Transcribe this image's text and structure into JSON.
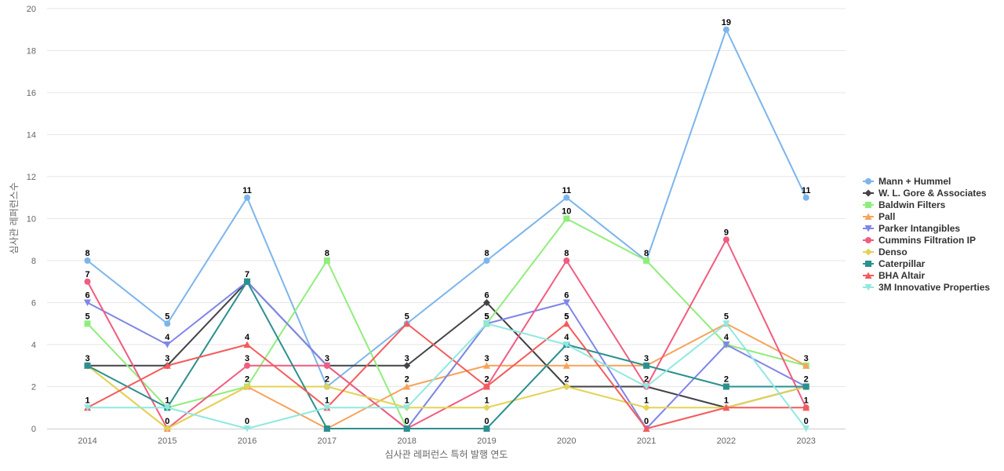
{
  "chart_data": {
    "type": "line",
    "xlabel": "심사관 레퍼런스 특허 발행 연도",
    "ylabel": "심사관 레퍼런스수",
    "x": [
      "2014",
      "2015",
      "2016",
      "2017",
      "2018",
      "2019",
      "2020",
      "2021",
      "2022",
      "2023"
    ],
    "ylim": [
      0,
      20
    ],
    "yticks": [
      0,
      2,
      4,
      6,
      8,
      10,
      12,
      14,
      16,
      18,
      20
    ],
    "grid": true,
    "legend_position": "right",
    "series": [
      {
        "name": "Mann + Hummel",
        "color": "#7cb5ec",
        "marker": "circle",
        "values": [
          8,
          5,
          11,
          2,
          5,
          8,
          11,
          8,
          19,
          11
        ],
        "labels": [
          8,
          5,
          11,
          null,
          5,
          8,
          11,
          8,
          19,
          11
        ]
      },
      {
        "name": "W. L. Gore & Associates",
        "color": "#434348",
        "marker": "diamond",
        "values": [
          3,
          3,
          7,
          3,
          3,
          6,
          2,
          2,
          1,
          2
        ],
        "labels": [
          null,
          3,
          null,
          null,
          3,
          6,
          2,
          null,
          null,
          null
        ]
      },
      {
        "name": "Baldwin Filters",
        "color": "#90ed7d",
        "marker": "square",
        "values": [
          5,
          1,
          2,
          8,
          0,
          5,
          10,
          8,
          4,
          3
        ],
        "labels": [
          5,
          null,
          null,
          8,
          null,
          null,
          10,
          null,
          null,
          null
        ]
      },
      {
        "name": "Pall",
        "color": "#f7a35c",
        "marker": "triangle",
        "values": [
          3,
          0,
          2,
          0,
          2,
          3,
          3,
          3,
          5,
          3
        ],
        "labels": [
          null,
          null,
          2,
          null,
          2,
          3,
          null,
          null,
          null,
          3
        ]
      },
      {
        "name": "Parker Intangibles",
        "color": "#8085e9",
        "marker": "triangle-down",
        "values": [
          6,
          4,
          7,
          3,
          0,
          5,
          6,
          0,
          4,
          2
        ],
        "labels": [
          6,
          4,
          null,
          null,
          null,
          null,
          6,
          null,
          4,
          null
        ]
      },
      {
        "name": "Cummins Filtration IP",
        "color": "#f15c80",
        "marker": "circle",
        "values": [
          7,
          0,
          3,
          3,
          0,
          2,
          8,
          2,
          9,
          1
        ],
        "labels": [
          7,
          null,
          3,
          null,
          null,
          null,
          8,
          null,
          9,
          null
        ]
      },
      {
        "name": "Denso",
        "color": "#e4d354",
        "marker": "diamond",
        "values": [
          3,
          0,
          2,
          2,
          1,
          1,
          2,
          1,
          1,
          2
        ],
        "labels": [
          null,
          null,
          null,
          null,
          null,
          1,
          null,
          1,
          null,
          null
        ]
      },
      {
        "name": "Caterpillar",
        "color": "#2b908f",
        "marker": "square",
        "values": [
          3,
          1,
          7,
          0,
          0,
          0,
          4,
          3,
          2,
          2
        ],
        "labels": [
          3,
          1,
          7,
          null,
          0,
          0,
          4,
          3,
          2,
          2
        ]
      },
      {
        "name": "BHA Altair",
        "color": "#f45b5b",
        "marker": "triangle",
        "values": [
          1,
          3,
          4,
          1,
          5,
          2,
          5,
          0,
          1,
          1
        ],
        "labels": [
          1,
          null,
          4,
          1,
          null,
          2,
          5,
          0,
          1,
          1
        ]
      },
      {
        "name": "3M Innovative Properties",
        "color": "#91e8e1",
        "marker": "triangle-down",
        "values": [
          1,
          1,
          0,
          1,
          1,
          5,
          4,
          2,
          5,
          0
        ],
        "labels": [
          null,
          null,
          0,
          null,
          1,
          5,
          null,
          2,
          5,
          0
        ]
      }
    ],
    "extra_labels": [
      {
        "x": "2015",
        "value": 0,
        "text": "0"
      },
      {
        "x": "2017",
        "value": 3,
        "text": "3"
      },
      {
        "x": "2017",
        "value": 2,
        "text": "2"
      },
      {
        "x": "2018",
        "value": 0,
        "text": "0"
      },
      {
        "x": "2019",
        "value": 5,
        "text": "5"
      },
      {
        "x": "2020",
        "value": 5,
        "text": "5"
      },
      {
        "x": "2020",
        "value": 3,
        "text": "3"
      }
    ]
  }
}
